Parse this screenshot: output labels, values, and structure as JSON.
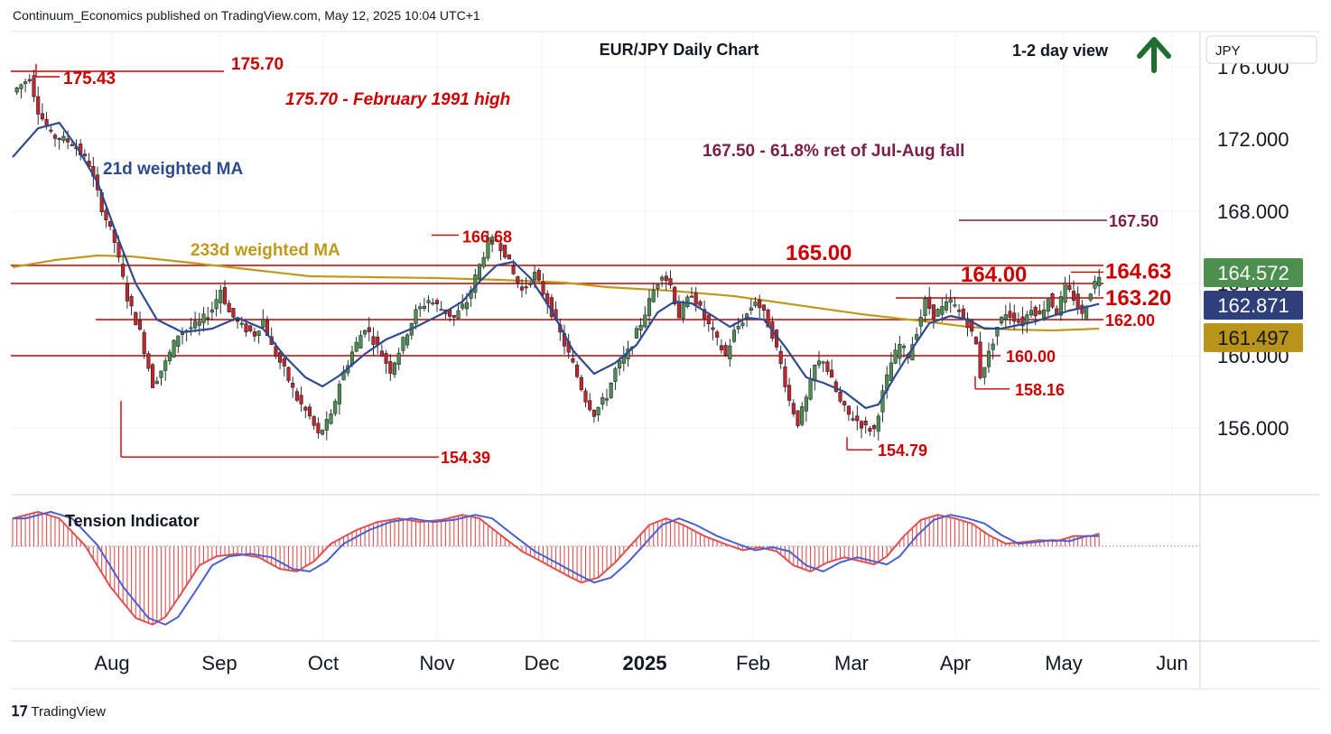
{
  "header": {
    "publisher_line": "Continuum_Economics published on TradingView.com, May 12, 2025 10:04 UTC+1"
  },
  "footer": {
    "logo_icon": "tradingview-logo-icon",
    "brand": "TradingView"
  },
  "chart_data": {
    "type": "candlestick",
    "title": "EUR/JPY Daily Chart",
    "view_label": "1-2 day view",
    "view_icon": "up-arrow-icon",
    "currency": "JPY",
    "ylim": [
      152.6,
      177.2
    ],
    "y_ticks": [
      "176.000",
      "172.000",
      "168.000",
      "164.000",
      "160.000",
      "156.000"
    ],
    "y_tick_values": [
      176,
      172,
      168,
      164,
      160,
      156
    ],
    "x_ticks": [
      {
        "label": "Aug",
        "bold": false
      },
      {
        "label": "Sep",
        "bold": false
      },
      {
        "label": "Oct",
        "bold": false
      },
      {
        "label": "Nov",
        "bold": false
      },
      {
        "label": "Dec",
        "bold": false
      },
      {
        "label": "2025",
        "bold": true
      },
      {
        "label": "Feb",
        "bold": false
      },
      {
        "label": "Mar",
        "bold": false
      },
      {
        "label": "Apr",
        "bold": false
      },
      {
        "label": "May",
        "bold": false
      },
      {
        "label": "Jun",
        "bold": false
      }
    ],
    "colors": {
      "up": "#4c8f4e",
      "down": "#c0262b",
      "level": "#cc0000",
      "ma21": "#2e4a8e",
      "ma233": "#bf9a1a",
      "fib": "#7a1f4a",
      "arrow": "#1e6e2e",
      "tension_fast": "#e05050",
      "tension_slow": "#4a5fd0"
    },
    "annotations": {
      "february_1991_high": "175.70 - February 1991 high",
      "fib_retracement": "167.50 - 61.8% ret of Jul-Aug fall",
      "ma21_label": "21d weighted MA",
      "ma233_label": "233d weighted MA",
      "tension_label": "Tension Indicator"
    },
    "levels": [
      {
        "label": "175.70",
        "value": 175.7,
        "big": false
      },
      {
        "label": "175.43",
        "value": 175.43,
        "big": false
      },
      {
        "label": "167.50",
        "value": 167.5,
        "big": false
      },
      {
        "label": "166.68",
        "value": 166.68,
        "big": false
      },
      {
        "label": "165.00",
        "value": 165.0,
        "big": true
      },
      {
        "label": "164.63",
        "value": 164.63,
        "big": true
      },
      {
        "label": "164.00",
        "value": 164.0,
        "big": true
      },
      {
        "label": "163.20",
        "value": 163.2,
        "big": true
      },
      {
        "label": "162.00",
        "value": 162.0,
        "big": false
      },
      {
        "label": "160.00",
        "value": 160.0,
        "big": false
      },
      {
        "label": "158.16",
        "value": 158.16,
        "big": false
      },
      {
        "label": "154.79",
        "value": 154.79,
        "big": false
      },
      {
        "label": "154.39",
        "value": 154.39,
        "big": false
      }
    ],
    "price_badges": [
      {
        "label": "164.572",
        "value": 164.572,
        "bg": "#4c8f4e",
        "fg": "#ffffff"
      },
      {
        "label": "162.871",
        "value": 162.871,
        "bg": "#2e3f7a",
        "fg": "#ffffff"
      },
      {
        "label": "161.497",
        "value": 161.497,
        "bg": "#b8941a",
        "fg": "#131722"
      }
    ],
    "price_path": [
      [
        0,
        174.6
      ],
      [
        4,
        175.43
      ],
      [
        6,
        173.6
      ],
      [
        9,
        172.2
      ],
      [
        14,
        171.8
      ],
      [
        18,
        170.6
      ],
      [
        21,
        168.2
      ],
      [
        24,
        166.3
      ],
      [
        27,
        163.2
      ],
      [
        30,
        161.3
      ],
      [
        33,
        158.4
      ],
      [
        36,
        159.6
      ],
      [
        39,
        161.2
      ],
      [
        44,
        161.8
      ],
      [
        47,
        162.6
      ],
      [
        49,
        163.7
      ],
      [
        51,
        162.4
      ],
      [
        54,
        161.6
      ],
      [
        57,
        161.2
      ],
      [
        59,
        162.0
      ],
      [
        61,
        160.5
      ],
      [
        64,
        159.2
      ],
      [
        67,
        157.6
      ],
      [
        70,
        156.6
      ],
      [
        72,
        155.6
      ],
      [
        75,
        156.6
      ],
      [
        77,
        158.5
      ],
      [
        80,
        160.2
      ],
      [
        83,
        161.6
      ],
      [
        86,
        160.5
      ],
      [
        89,
        159.2
      ],
      [
        92,
        160.8
      ],
      [
        95,
        162.4
      ],
      [
        98,
        163.1
      ],
      [
        101,
        162.6
      ],
      [
        104,
        162.1
      ],
      [
        107,
        163.0
      ],
      [
        110,
        165.0
      ],
      [
        112,
        166.3
      ],
      [
        114,
        166.4
      ],
      [
        116,
        165.7
      ],
      [
        118,
        164.5
      ],
      [
        120,
        163.6
      ],
      [
        123,
        164.5
      ],
      [
        126,
        163.0
      ],
      [
        129,
        161.2
      ],
      [
        132,
        159.5
      ],
      [
        135,
        157.6
      ],
      [
        137,
        156.8
      ],
      [
        140,
        157.8
      ],
      [
        142,
        159.2
      ],
      [
        145,
        160.2
      ],
      [
        148,
        161.8
      ],
      [
        151,
        163.6
      ],
      [
        153,
        164.6
      ],
      [
        155,
        163.9
      ],
      [
        157,
        162.2
      ],
      [
        160,
        163.5
      ],
      [
        163,
        162.1
      ],
      [
        166,
        160.8
      ],
      [
        168,
        160.0
      ],
      [
        170,
        161.3
      ],
      [
        173,
        162.3
      ],
      [
        175,
        163.1
      ],
      [
        177,
        162.3
      ],
      [
        179,
        161.2
      ],
      [
        181,
        159.5
      ],
      [
        183,
        157.5
      ],
      [
        185,
        156.3
      ],
      [
        187,
        157.6
      ],
      [
        189,
        159.4
      ],
      [
        191,
        159.8
      ],
      [
        193,
        158.6
      ],
      [
        195,
        157.4
      ],
      [
        197,
        156.7
      ],
      [
        199,
        156.4
      ],
      [
        201,
        156.0
      ],
      [
        203,
        155.9
      ],
      [
        205,
        157.9
      ],
      [
        207,
        159.6
      ],
      [
        209,
        160.6
      ],
      [
        211,
        160.0
      ],
      [
        213,
        161.4
      ],
      [
        215,
        163.0
      ],
      [
        217,
        162.3
      ],
      [
        219,
        162.6
      ],
      [
        221,
        163.0
      ],
      [
        223,
        162.4
      ],
      [
        225,
        161.8
      ],
      [
        227,
        160.6
      ],
      [
        228,
        158.9
      ],
      [
        230,
        160.1
      ],
      [
        232,
        161.6
      ],
      [
        234,
        162.4
      ],
      [
        236,
        162.1
      ],
      [
        238,
        161.8
      ],
      [
        240,
        162.7
      ],
      [
        242,
        162.2
      ],
      [
        244,
        163.2
      ],
      [
        246,
        162.4
      ],
      [
        248,
        163.8
      ],
      [
        250,
        163.2
      ],
      [
        252,
        162.2
      ],
      [
        254,
        163.6
      ],
      [
        256,
        164.5
      ]
    ],
    "ma21_path": [
      [
        0,
        171.0
      ],
      [
        6,
        172.6
      ],
      [
        11,
        172.9
      ],
      [
        15,
        171.6
      ],
      [
        20,
        169.6
      ],
      [
        25,
        166.4
      ],
      [
        29,
        164.0
      ],
      [
        34,
        162.0
      ],
      [
        40,
        161.3
      ],
      [
        47,
        161.5
      ],
      [
        53,
        162.1
      ],
      [
        59,
        161.5
      ],
      [
        64,
        160.0
      ],
      [
        69,
        158.8
      ],
      [
        73,
        158.3
      ],
      [
        77,
        158.9
      ],
      [
        83,
        160.1
      ],
      [
        88,
        160.9
      ],
      [
        95,
        161.6
      ],
      [
        101,
        162.3
      ],
      [
        106,
        163.0
      ],
      [
        110,
        164.1
      ],
      [
        114,
        165.0
      ],
      [
        118,
        165.2
      ],
      [
        122,
        164.3
      ],
      [
        127,
        162.5
      ],
      [
        132,
        160.3
      ],
      [
        137,
        159.0
      ],
      [
        142,
        159.6
      ],
      [
        147,
        160.6
      ],
      [
        152,
        162.4
      ],
      [
        156,
        163.0
      ],
      [
        160,
        162.9
      ],
      [
        165,
        162.2
      ],
      [
        169,
        161.6
      ],
      [
        173,
        162.1
      ],
      [
        177,
        162.0
      ],
      [
        182,
        160.5
      ],
      [
        187,
        158.8
      ],
      [
        191,
        158.5
      ],
      [
        196,
        158.0
      ],
      [
        201,
        157.1
      ],
      [
        204,
        157.3
      ],
      [
        208,
        158.9
      ],
      [
        212,
        160.4
      ],
      [
        216,
        161.8
      ],
      [
        221,
        162.2
      ],
      [
        225,
        162.0
      ],
      [
        229,
        161.5
      ],
      [
        233,
        161.5
      ],
      [
        237,
        161.7
      ],
      [
        241,
        161.9
      ],
      [
        245,
        162.2
      ],
      [
        249,
        162.5
      ],
      [
        253,
        162.7
      ],
      [
        256,
        162.871
      ]
    ],
    "ma233_path": [
      [
        0,
        164.9
      ],
      [
        10,
        165.3
      ],
      [
        20,
        165.55
      ],
      [
        28,
        165.5
      ],
      [
        40,
        165.2
      ],
      [
        55,
        164.8
      ],
      [
        70,
        164.4
      ],
      [
        85,
        164.35
      ],
      [
        100,
        164.3
      ],
      [
        115,
        164.2
      ],
      [
        130,
        164.05
      ],
      [
        140,
        163.8
      ],
      [
        155,
        163.6
      ],
      [
        170,
        163.3
      ],
      [
        185,
        162.8
      ],
      [
        200,
        162.3
      ],
      [
        215,
        161.9
      ],
      [
        225,
        161.6
      ],
      [
        235,
        161.45
      ],
      [
        245,
        161.4
      ],
      [
        256,
        161.497
      ]
    ],
    "tension_path": [
      [
        0,
        0.55
      ],
      [
        6,
        0.68
      ],
      [
        11,
        0.55
      ],
      [
        17,
        0.02
      ],
      [
        23,
        -0.8
      ],
      [
        29,
        -1.42
      ],
      [
        33,
        -1.55
      ],
      [
        36,
        -1.4
      ],
      [
        40,
        -0.9
      ],
      [
        44,
        -0.38
      ],
      [
        48,
        -0.2
      ],
      [
        53,
        -0.15
      ],
      [
        58,
        -0.22
      ],
      [
        63,
        -0.45
      ],
      [
        67,
        -0.5
      ],
      [
        71,
        -0.3
      ],
      [
        75,
        0.05
      ],
      [
        81,
        0.32
      ],
      [
        86,
        0.48
      ],
      [
        91,
        0.55
      ],
      [
        96,
        0.48
      ],
      [
        101,
        0.52
      ],
      [
        106,
        0.62
      ],
      [
        110,
        0.55
      ],
      [
        115,
        0.22
      ],
      [
        120,
        -0.1
      ],
      [
        125,
        -0.32
      ],
      [
        130,
        -0.55
      ],
      [
        134,
        -0.72
      ],
      [
        138,
        -0.62
      ],
      [
        142,
        -0.32
      ],
      [
        146,
        0.05
      ],
      [
        150,
        0.42
      ],
      [
        154,
        0.55
      ],
      [
        158,
        0.42
      ],
      [
        163,
        0.2
      ],
      [
        168,
        0.04
      ],
      [
        172,
        -0.08
      ],
      [
        176,
        -0.02
      ],
      [
        180,
        -0.1
      ],
      [
        184,
        -0.38
      ],
      [
        188,
        -0.5
      ],
      [
        192,
        -0.32
      ],
      [
        196,
        -0.22
      ],
      [
        200,
        -0.3
      ],
      [
        203,
        -0.36
      ],
      [
        206,
        -0.2
      ],
      [
        210,
        0.2
      ],
      [
        214,
        0.52
      ],
      [
        218,
        0.62
      ],
      [
        222,
        0.55
      ],
      [
        226,
        0.45
      ],
      [
        230,
        0.22
      ],
      [
        234,
        0.05
      ],
      [
        238,
        0.08
      ],
      [
        242,
        0.12
      ],
      [
        246,
        0.1
      ],
      [
        250,
        0.2
      ],
      [
        254,
        0.2
      ],
      [
        256,
        0.25
      ]
    ]
  }
}
